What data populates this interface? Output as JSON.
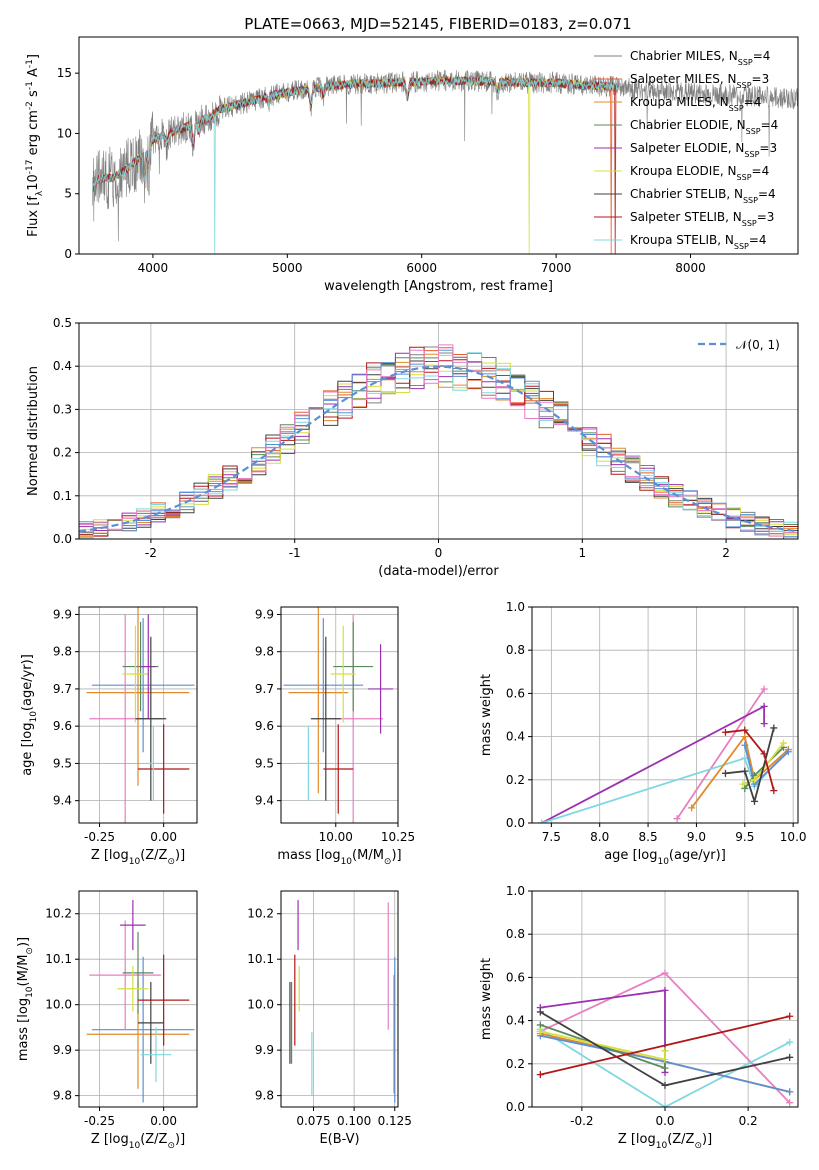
{
  "figure": {
    "title": "PLATE=0663, MJD=52145, FIBERID=0183, z=0.071"
  },
  "models": [
    {
      "name": "Chabrier MILES, N$_{SSP}$=4",
      "label_main": "Chabrier MILES, N",
      "label_sub": "SSP",
      "label_end": "=4",
      "color": "#808080"
    },
    {
      "name": "Salpeter MILES, N$_{SSP}$=3",
      "label_main": "Salpeter MILES, N",
      "label_sub": "SSP",
      "label_end": "=3",
      "color": "#e8602c"
    },
    {
      "name": "Kroupa MILES, N$_{SSP}$=4",
      "label_main": "Kroupa MILES, N",
      "label_sub": "SSP",
      "label_end": "=4",
      "color": "#e08a2c"
    },
    {
      "name": "Chabrier ELODIE, N$_{SSP}$=4",
      "label_main": "Chabrier ELODIE, N",
      "label_sub": "SSP",
      "label_end": "=4",
      "color": "#5a8a5a"
    },
    {
      "name": "Salpeter ELODIE, N$_{SSP}$=3",
      "label_main": "Salpeter ELODIE, N",
      "label_sub": "SSP",
      "label_end": "=3",
      "color": "#9b30b0"
    },
    {
      "name": "Kroupa ELODIE, N$_{SSP}$=4",
      "label_main": "Kroupa ELODIE, N",
      "label_sub": "SSP",
      "label_end": "=4",
      "color": "#d4e040"
    },
    {
      "name": "Chabrier STELIB, N$_{SSP}$=4",
      "label_main": "Chabrier STELIB, N",
      "label_sub": "SSP",
      "label_end": "=4",
      "color": "#404040"
    },
    {
      "name": "Salpeter STELIB, N$_{SSP}$=3",
      "label_main": "Salpeter STELIB, N",
      "label_sub": "SSP",
      "label_end": "=3",
      "color": "#b01818"
    },
    {
      "name": "Kroupa STELIB, N$_{SSP}$=4",
      "label_main": "Kroupa STELIB, N",
      "label_sub": "SSP",
      "label_end": "=4",
      "color": "#7fd8e0"
    }
  ],
  "chart_data": [
    {
      "id": "spectrum",
      "type": "line",
      "xlabel": "wavelength [Angstrom, rest frame]",
      "ylabel": "Flux [f$_\\lambda$10$^{-17}$ erg cm$^{-2}$ s$^{-1}$ A$^{-1}$]",
      "xlim": [
        3450,
        8800
      ],
      "ylim": [
        0,
        18
      ],
      "xticks": [
        4000,
        5000,
        6000,
        7000,
        8000
      ],
      "yticks": [
        0,
        5,
        10,
        15
      ],
      "legend": "top-right",
      "continuum_knots": {
        "wavelength": [
          3550,
          3600,
          3700,
          3800,
          3900,
          4000,
          4100,
          4200,
          4300,
          4400,
          4500,
          4700,
          4900,
          5100,
          5300,
          5500,
          5800,
          6000,
          6200,
          6500,
          6800,
          7000,
          7200,
          7400,
          7600,
          8000,
          8400,
          8800
        ],
        "flux": [
          5.5,
          6.3,
          6.3,
          7.0,
          8.0,
          9.5,
          10.0,
          10.3,
          10.8,
          11.2,
          12.0,
          12.6,
          13.2,
          13.6,
          13.9,
          14.1,
          14.2,
          14.3,
          14.4,
          14.3,
          14.2,
          14.2,
          14.0,
          13.9,
          13.7,
          13.4,
          13.1,
          12.9
        ]
      },
      "absorption_features": [
        {
          "wavelength": 3934,
          "depth": 2.5
        },
        {
          "wavelength": 3969,
          "depth": 2.0
        },
        {
          "wavelength": 4102,
          "depth": 1.0
        },
        {
          "wavelength": 4300,
          "depth": 1.8
        },
        {
          "wavelength": 4340,
          "depth": 0.8
        },
        {
          "wavelength": 4861,
          "depth": 0.7
        },
        {
          "wavelength": 5175,
          "depth": 1.5
        },
        {
          "wavelength": 5270,
          "depth": 0.8
        },
        {
          "wavelength": 5893,
          "depth": 1.4
        },
        {
          "wavelength": 6563,
          "depth": 0.9
        }
      ],
      "dropouts": [
        {
          "wavelength": 4460,
          "flux": 0,
          "model": "Kroupa STELIB, N$_{SSP}$=4"
        },
        {
          "wavelength": 6800,
          "flux": 0,
          "model": "Kroupa ELODIE, N$_{SSP}$=4"
        },
        {
          "wavelength": 7410,
          "flux": 0,
          "model": "Salpeter MILES, N$_{SSP}$=3"
        },
        {
          "wavelength": 7440,
          "flux": 0,
          "model": "Salpeter STELIB, N$_{SSP}$=3"
        }
      ],
      "model_range": [
        3550,
        7460
      ],
      "data_range": [
        3550,
        8800
      ],
      "data_line": {
        "color": "#808080"
      }
    },
    {
      "id": "residuals",
      "type": "histogram",
      "xlabel": "(data-model)/error",
      "ylabel": "Normed distribution",
      "xlim": [
        -2.5,
        2.5
      ],
      "ylim": [
        0,
        0.5
      ],
      "xticks": [
        -2,
        -1,
        0,
        1,
        2
      ],
      "yticks": [
        0,
        0.1,
        0.2,
        0.3,
        0.4,
        0.5
      ],
      "grid": true,
      "bin_width": 0.1,
      "bin_start": -2.5,
      "reference_curve": {
        "name": "$\\mathcal{N}(0,1)$",
        "label": "𝒩(0, 1)",
        "color": "#5b8fd8",
        "style": "dashed"
      },
      "legend": "top-right",
      "series": [
        {
          "name": "Chabrier MILES, N$_{SSP}$=4",
          "seed": 1
        },
        {
          "name": "Salpeter MILES, N$_{SSP}$=3",
          "seed": 2
        },
        {
          "name": "Kroupa MILES, N$_{SSP}$=4",
          "seed": 3
        },
        {
          "name": "Chabrier ELODIE, N$_{SSP}$=4",
          "seed": 4
        },
        {
          "name": "Salpeter ELODIE, N$_{SSP}$=3",
          "seed": 5
        },
        {
          "name": "Kroupa ELODIE, N$_{SSP}$=4",
          "seed": 6
        },
        {
          "name": "Chabrier STELIB, N$_{SSP}$=4",
          "seed": 7
        },
        {
          "name": "Salpeter STELIB, N$_{SSP}$=3",
          "seed": 8
        },
        {
          "name": "Kroupa STELIB, N$_{SSP}$=4",
          "seed": 9
        }
      ],
      "extra_colors": [
        "#5b8fd8",
        "#e87fc0"
      ]
    },
    {
      "id": "age-vs-Z",
      "type": "errorbar",
      "xlabel": "Z [log$_{10}$(Z/Z$_\\odot$)]",
      "ylabel": "age  [log$_{10}$(age/yr)]",
      "xlim": [
        -0.33,
        0.13
      ],
      "ylim": [
        9.34,
        9.92
      ],
      "xticks": [
        -0.25,
        0.0
      ],
      "yticks": [
        9.4,
        9.5,
        9.6,
        9.7,
        9.8,
        9.9
      ],
      "grid": true,
      "points": [
        {
          "color": "#5b8fd8",
          "x": -0.08,
          "xerr": 0.2,
          "y": 9.71,
          "yerr": 0.18
        },
        {
          "color": "#e08a2c",
          "x": -0.1,
          "xerr": 0.2,
          "y": 9.69,
          "yerr": 0.25
        },
        {
          "color": "#e87fc0",
          "x": -0.15,
          "xerr": 0.14,
          "y": 9.62,
          "yerr": 0.28
        },
        {
          "color": "#5a8a5a",
          "x": -0.09,
          "xerr": 0.07,
          "y": 9.76,
          "yerr": 0.12
        },
        {
          "color": "#d4e040",
          "x": -0.11,
          "xerr": 0.05,
          "y": 9.74,
          "yerr": 0.13
        },
        {
          "color": "#9b30b0",
          "x": -0.06,
          "xerr": 0.03,
          "y": 9.76,
          "yerr": 0.14
        },
        {
          "color": "#404040",
          "x": -0.05,
          "xerr": 0.06,
          "y": 9.62,
          "yerr": 0.22
        },
        {
          "color": "#b01818",
          "x": 0.0,
          "xerr": 0.1,
          "y": 9.485,
          "yerr": 0.12
        },
        {
          "color": "#7fd8e0",
          "x": -0.04,
          "xerr": 0.03,
          "y": 9.5,
          "yerr": 0.1
        }
      ]
    },
    {
      "id": "age-vs-mass",
      "type": "errorbar",
      "xlabel": "mass [log$_{10}$(M/M$_\\odot$)]",
      "ylabel": "",
      "xlim": [
        9.78,
        10.25
      ],
      "ylim": [
        9.34,
        9.92
      ],
      "xticks": [
        10.0,
        10.25
      ],
      "yticks": [
        9.4,
        9.5,
        9.6,
        9.7,
        9.8,
        9.9
      ],
      "grid": true,
      "points": [
        {
          "color": "#5b8fd8",
          "x": 9.95,
          "xerr": 0.16,
          "y": 9.71,
          "yerr": 0.18
        },
        {
          "color": "#e08a2c",
          "x": 9.93,
          "xerr": 0.12,
          "y": 9.69,
          "yerr": 0.27
        },
        {
          "color": "#e87fc0",
          "x": 10.07,
          "xerr": 0.12,
          "y": 9.62,
          "yerr": 0.28
        },
        {
          "color": "#5a8a5a",
          "x": 10.07,
          "xerr": 0.08,
          "y": 9.76,
          "yerr": 0.12
        },
        {
          "color": "#d4e040",
          "x": 10.03,
          "xerr": 0.05,
          "y": 9.74,
          "yerr": 0.13
        },
        {
          "color": "#9b30b0",
          "x": 10.18,
          "xerr": 0.05,
          "y": 9.7,
          "yerr": 0.12
        },
        {
          "color": "#404040",
          "x": 9.96,
          "xerr": 0.06,
          "y": 9.62,
          "yerr": 0.22
        },
        {
          "color": "#b01818",
          "x": 10.01,
          "xerr": 0.06,
          "y": 9.485,
          "yerr": 0.12
        },
        {
          "color": "#7fd8e0",
          "x": 9.89,
          "xerr": 0.05,
          "y": 9.5,
          "yerr": 0.1
        }
      ]
    },
    {
      "id": "mass-weight-vs-age",
      "type": "line",
      "xlabel": "age  [log$_{10}$(age/yr)]",
      "ylabel": "mass weight",
      "xlim": [
        7.3,
        10.05
      ],
      "ylim": [
        0,
        1
      ],
      "xticks": [
        7.5,
        8.0,
        8.5,
        9.0,
        9.5,
        10.0
      ],
      "yticks": [
        0,
        0.2,
        0.4,
        0.6,
        0.8,
        1.0
      ],
      "grid": true,
      "series": [
        {
          "color": "#e87fc0",
          "x": [
            8.8,
            9.7
          ],
          "y": [
            0.02,
            0.62
          ]
        },
        {
          "color": "#9b30b0",
          "x": [
            7.4,
            9.7,
            9.7
          ],
          "y": [
            0.0,
            0.54,
            0.46
          ]
        },
        {
          "color": "#7fd8e0",
          "x": [
            7.4,
            9.5,
            9.6,
            9.95
          ],
          "y": [
            0.0,
            0.3,
            0.17,
            0.34
          ]
        },
        {
          "color": "#e08a2c",
          "x": [
            8.95,
            9.5,
            9.6,
            9.95
          ],
          "y": [
            0.07,
            0.4,
            0.2,
            0.34
          ]
        },
        {
          "color": "#5b8fd8",
          "x": [
            9.5,
            9.6,
            9.95
          ],
          "y": [
            0.36,
            0.18,
            0.33
          ]
        },
        {
          "color": "#5a8a5a",
          "x": [
            9.5,
            9.6,
            9.9
          ],
          "y": [
            0.16,
            0.22,
            0.35
          ]
        },
        {
          "color": "#d4e040",
          "x": [
            9.48,
            9.6,
            9.9
          ],
          "y": [
            0.18,
            0.2,
            0.37
          ]
        },
        {
          "color": "#404040",
          "x": [
            9.3,
            9.5,
            9.6,
            9.8
          ],
          "y": [
            0.23,
            0.24,
            0.1,
            0.44
          ]
        },
        {
          "color": "#b01818",
          "x": [
            9.3,
            9.5,
            9.7,
            9.8
          ],
          "y": [
            0.42,
            0.43,
            0.32,
            0.15
          ]
        }
      ]
    },
    {
      "id": "mass-vs-Z",
      "type": "errorbar",
      "xlabel": "Z [log$_{10}$(Z/Z$_\\odot$)]",
      "ylabel": "mass [log$_{10}$(M/M$_\\odot$)]",
      "xlim": [
        -0.33,
        0.13
      ],
      "ylim": [
        9.775,
        10.25
      ],
      "xticks": [
        -0.25,
        0.0
      ],
      "yticks": [
        9.8,
        9.9,
        10.0,
        10.1,
        10.2
      ],
      "grid": true,
      "points": [
        {
          "color": "#5b8fd8",
          "x": -0.08,
          "xerr": 0.2,
          "y": 9.945,
          "yerr": 0.16
        },
        {
          "color": "#e08a2c",
          "x": -0.1,
          "xerr": 0.2,
          "y": 9.935,
          "yerr": 0.12
        },
        {
          "color": "#e87fc0",
          "x": -0.15,
          "xerr": 0.14,
          "y": 10.065,
          "yerr": 0.12
        },
        {
          "color": "#5a8a5a",
          "x": -0.1,
          "xerr": 0.06,
          "y": 10.07,
          "yerr": 0.09
        },
        {
          "color": "#d4e040",
          "x": -0.12,
          "xerr": 0.06,
          "y": 10.035,
          "yerr": 0.05
        },
        {
          "color": "#9b30b0",
          "x": -0.12,
          "xerr": 0.05,
          "y": 10.175,
          "yerr": 0.055
        },
        {
          "color": "#404040",
          "x": -0.05,
          "xerr": 0.05,
          "y": 9.96,
          "yerr": 0.09
        },
        {
          "color": "#b01818",
          "x": 0.0,
          "xerr": 0.1,
          "y": 10.01,
          "yerr": 0.1
        },
        {
          "color": "#7fd8e0",
          "x": -0.03,
          "xerr": 0.06,
          "y": 9.89,
          "yerr": 0.06
        }
      ]
    },
    {
      "id": "mass-vs-EBV",
      "type": "errorbar",
      "xlabel": "E(B-V)",
      "ylabel": "",
      "xlim": [
        0.055,
        0.127
      ],
      "ylim": [
        9.775,
        10.25
      ],
      "xticks": [
        0.075,
        0.1,
        0.125
      ],
      "xtick_labels": [
        "0.075",
        "0.100",
        "0.125"
      ],
      "yticks": [
        9.8,
        9.9,
        10.0,
        10.1,
        10.2
      ],
      "grid": true,
      "points": [
        {
          "color": "#5a8a5a",
          "x": 0.0615,
          "xerr": 0,
          "y": 9.96,
          "yerr": 0.09
        },
        {
          "color": "#b01818",
          "x": 0.0635,
          "xerr": 0,
          "y": 10.01,
          "yerr": 0.1
        },
        {
          "color": "#9b30b0",
          "x": 0.0655,
          "xerr": 0,
          "y": 10.175,
          "yerr": 0.055
        },
        {
          "color": "#d4e040",
          "x": 0.0662,
          "xerr": 0,
          "y": 10.035,
          "yerr": 0.05
        },
        {
          "color": "#7fd8e0",
          "x": 0.074,
          "xerr": 0,
          "y": 9.87,
          "yerr": 0.07
        },
        {
          "color": "#e87fc0",
          "x": 0.121,
          "xerr": 0,
          "y": 10.085,
          "yerr": 0.14
        },
        {
          "color": "#e08a2c",
          "x": 0.1245,
          "xerr": 0,
          "y": 9.935,
          "yerr": 0.13
        },
        {
          "color": "#5b8fd8",
          "x": 0.125,
          "xerr": 0,
          "y": 9.945,
          "yerr": 0.16
        },
        {
          "color": "#404040",
          "x": 0.0605,
          "xerr": 0,
          "y": 9.96,
          "yerr": 0.09
        }
      ]
    },
    {
      "id": "mass-weight-vs-Z",
      "type": "line",
      "xlabel": "Z [log$_{10}$(Z/Z$_\\odot$)]",
      "ylabel": "mass weight",
      "xlim": [
        -0.32,
        0.32
      ],
      "ylim": [
        0,
        1
      ],
      "xticks": [
        -0.2,
        0.0,
        0.2
      ],
      "yticks": [
        0,
        0.2,
        0.4,
        0.6,
        0.8,
        1.0
      ],
      "grid": true,
      "series": [
        {
          "color": "#e87fc0",
          "x": [
            -0.3,
            0.0,
            0.3
          ],
          "y": [
            0.35,
            0.62,
            0.02
          ]
        },
        {
          "color": "#9b30b0",
          "x": [
            -0.3,
            0.0,
            0.0
          ],
          "y": [
            0.46,
            0.54,
            0.16
          ]
        },
        {
          "color": "#7fd8e0",
          "x": [
            -0.3,
            0.0,
            0.3
          ],
          "y": [
            0.36,
            0.0,
            0.3
          ]
        },
        {
          "color": "#e08a2c",
          "x": [
            -0.3,
            0.0,
            0.3
          ],
          "y": [
            0.34,
            0.21,
            0.07
          ]
        },
        {
          "color": "#5b8fd8",
          "x": [
            -0.3,
            0.0,
            0.3
          ],
          "y": [
            0.33,
            0.21,
            0.07
          ]
        },
        {
          "color": "#5a8a5a",
          "x": [
            -0.3,
            0.0,
            0.0
          ],
          "y": [
            0.38,
            0.18,
            0.26
          ]
        },
        {
          "color": "#d4e040",
          "x": [
            -0.3,
            0.0,
            0.0
          ],
          "y": [
            0.35,
            0.22,
            0.26
          ]
        },
        {
          "color": "#404040",
          "x": [
            -0.3,
            0.0,
            0.3
          ],
          "y": [
            0.44,
            0.1,
            0.23
          ]
        },
        {
          "color": "#b01818",
          "x": [
            -0.3,
            0.3
          ],
          "y": [
            0.15,
            0.42
          ]
        }
      ]
    }
  ]
}
